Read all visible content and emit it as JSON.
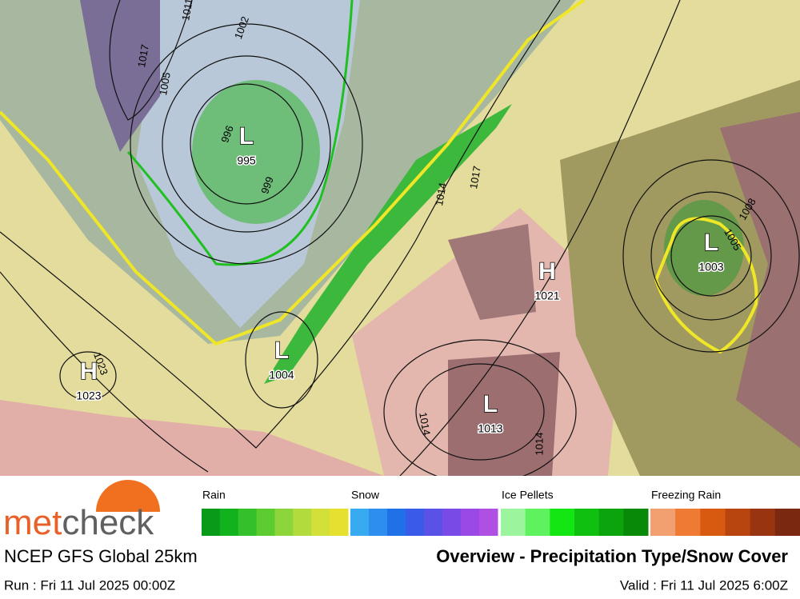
{
  "map": {
    "centers": [
      {
        "letter": "L",
        "value": "995"
      },
      {
        "letter": "L",
        "value": "1004"
      },
      {
        "letter": "H",
        "value": "1023"
      },
      {
        "letter": "L",
        "value": "1013"
      },
      {
        "letter": "H",
        "value": "1021"
      },
      {
        "letter": "L",
        "value": "1003"
      }
    ],
    "isobar_labels": [
      "996",
      "999",
      "1014",
      "1017",
      "1002",
      "1011",
      "1017",
      "1005",
      "1023",
      "1014",
      "1014",
      "1008",
      "1005"
    ]
  },
  "legend": {
    "groups": [
      {
        "label": "Rain",
        "colors": [
          "#0a9a1a",
          "#12b21e",
          "#33c02a",
          "#5ccc30",
          "#8cd63c",
          "#b2dc3e",
          "#d4e03a",
          "#e6e030"
        ]
      },
      {
        "label": "Snow",
        "colors": [
          "#38aaf0",
          "#2e8ef0",
          "#2070e8",
          "#3a5ae8",
          "#5a52e6",
          "#7a4ae6",
          "#9a48e6",
          "#b050e2"
        ]
      },
      {
        "label": "Ice Pellets",
        "colors": [
          "#9cf59c",
          "#5ef25e",
          "#14e614",
          "#10c010",
          "#0ca40c",
          "#088a08"
        ]
      },
      {
        "label": "Freezing Rain",
        "colors": [
          "#f2a070",
          "#ee7a34",
          "#d85a10",
          "#b84410",
          "#983410",
          "#7a2810"
        ]
      }
    ]
  },
  "logo": {
    "prefix": "met",
    "suffix": "check"
  },
  "footer": {
    "model": "NCEP GFS Global 25km",
    "title": "Overview - Precipitation Type/Snow Cover",
    "run": "Run : Fri 11 Jul 2025 00:00Z",
    "valid": "Valid : Fri 11 Jul 2025 6:00Z"
  }
}
